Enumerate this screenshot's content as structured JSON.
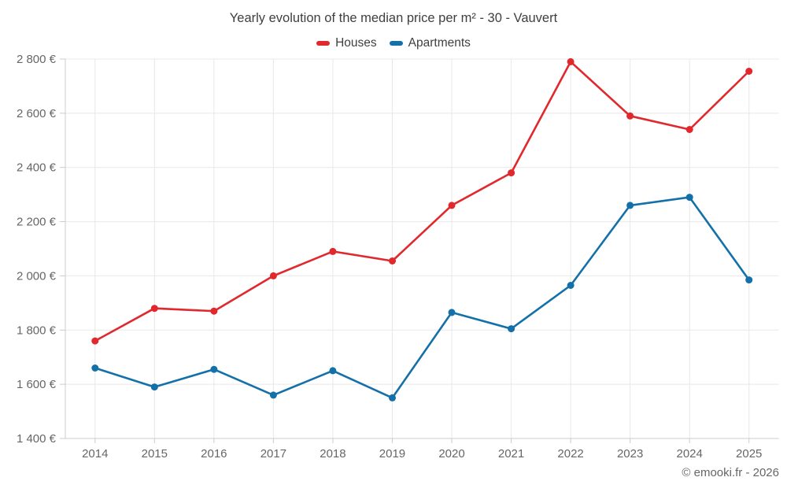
{
  "chart_data": {
    "type": "line",
    "title": "Yearly evolution of the median price per m² - 30 - Vauvert",
    "categories": [
      "2014",
      "2015",
      "2016",
      "2017",
      "2018",
      "2019",
      "2020",
      "2021",
      "2022",
      "2023",
      "2024",
      "2025"
    ],
    "series": [
      {
        "name": "Houses",
        "color": "#e0282d",
        "values": [
          1760,
          1880,
          1870,
          2000,
          2090,
          2055,
          2260,
          2380,
          2790,
          2590,
          2540,
          2755
        ]
      },
      {
        "name": "Apartments",
        "color": "#1470a9",
        "values": [
          1660,
          1590,
          1655,
          1560,
          1650,
          1550,
          1865,
          1805,
          1965,
          2260,
          2290,
          1985
        ]
      }
    ],
    "xlabel": "",
    "ylabel": "",
    "ylim": [
      1400,
      2800
    ],
    "yticks": [
      1400,
      1600,
      1800,
      2000,
      2200,
      2400,
      2600,
      2800
    ],
    "ytick_labels": [
      "1 400 €",
      "1 600 €",
      "1 800 €",
      "2 000 €",
      "2 200 €",
      "2 400 €",
      "2 600 €",
      "2 800 €"
    ],
    "grid": true,
    "legend_position": "top"
  },
  "colors": {
    "grid": "#e8e8e8",
    "axis": "#cccccc",
    "tick_label": "#666666",
    "title_text": "#3f3f3f",
    "background": "#ffffff"
  },
  "watermark": "© emooki.fr - 2026"
}
